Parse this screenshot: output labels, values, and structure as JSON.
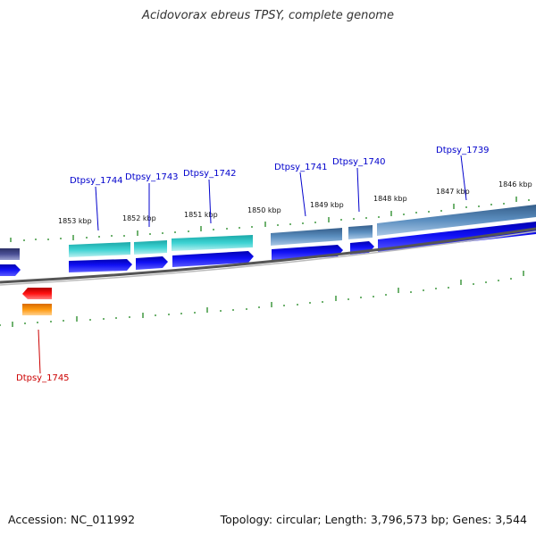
{
  "title": "Acidovorax ebreus TPSY, complete genome",
  "footer": {
    "accession": "Accession: NC_011992",
    "summary": "Topology: circular; Length: 3,796,573 bp; Genes: 3,544"
  },
  "ruler_labels": [
    "1853 kbp",
    "1852 kbp",
    "1851 kbp",
    "1850 kbp",
    "1849 kbp",
    "1848 kbp",
    "1847 kbp",
    "1846 kbp"
  ],
  "gene_labels": [
    {
      "text": "Dtpsy_1744",
      "color": "#0000cc"
    },
    {
      "text": "Dtpsy_1743",
      "color": "#0000cc"
    },
    {
      "text": "Dtpsy_1742",
      "color": "#0000cc"
    },
    {
      "text": "Dtpsy_1741",
      "color": "#0000cc"
    },
    {
      "text": "Dtpsy_1740",
      "color": "#0000cc"
    },
    {
      "text": "Dtpsy_1739",
      "color": "#0000cc"
    },
    {
      "text": "Dtpsy_1745",
      "color": "#cc0000"
    }
  ],
  "colors": {
    "cds": "#0000ee",
    "rna_teal": "#20c0c8",
    "steel": "#4a80b0",
    "navy": "#3a3f80",
    "red": "#ee0000",
    "orange": "#ff8c00",
    "tick": "#228822",
    "backbone": "#777777"
  }
}
